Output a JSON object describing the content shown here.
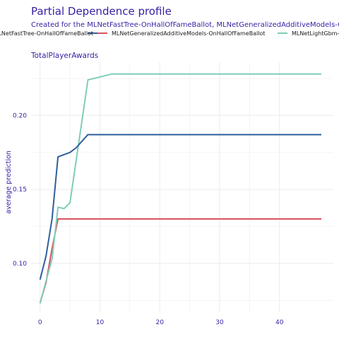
{
  "chart_data": {
    "type": "line",
    "title": "Partial Dependence profile",
    "subtitle": "Created for the MLNetFastTree-OnHallOfFameBallot, MLNetGeneralizedAdditiveModels-OnHallOfFameBallot, MLNetLightGbm-OnHallOfFameBallot model",
    "panel_label": "TotalPlayerAwards",
    "xlabel": "",
    "ylabel": "average prediction",
    "xlim": [
      -1.5,
      49
    ],
    "ylim": [
      0.067,
      0.236
    ],
    "x_ticks": [
      0,
      10,
      20,
      30,
      40
    ],
    "y_ticks": [
      0.1,
      0.15,
      0.2
    ],
    "y_tick_labels": [
      "0.10",
      "0.15",
      "0.20"
    ],
    "grid": true,
    "legend_position": "top",
    "series": [
      {
        "name": "MLNetFastTree-OnHallOfFameBallot",
        "color": "#2e5f9e",
        "points": [
          [
            0,
            0.089
          ],
          [
            1,
            0.105
          ],
          [
            2,
            0.13
          ],
          [
            3,
            0.172
          ],
          [
            5,
            0.175
          ],
          [
            6,
            0.178
          ],
          [
            8,
            0.187
          ],
          [
            47,
            0.187
          ]
        ]
      },
      {
        "name": "MLNetGeneralizedAdditiveModels-OnHallOfFameBallot",
        "color": "#d9535f",
        "points": [
          [
            0,
            0.073
          ],
          [
            1,
            0.087
          ],
          [
            2,
            0.11
          ],
          [
            3,
            0.13
          ],
          [
            47,
            0.13
          ]
        ]
      },
      {
        "name": "MLNetLightGbm-OnHallOfFameBallot",
        "color": "#7fcdb9",
        "points": [
          [
            0,
            0.073
          ],
          [
            1,
            0.088
          ],
          [
            2,
            0.103
          ],
          [
            3,
            0.138
          ],
          [
            4,
            0.137
          ],
          [
            5,
            0.141
          ],
          [
            8,
            0.224
          ],
          [
            12,
            0.228
          ],
          [
            47,
            0.228
          ]
        ]
      }
    ]
  },
  "colors": {
    "title": "#371ea3",
    "tick_label": "#371ea3",
    "grid": "#ebebeb"
  }
}
